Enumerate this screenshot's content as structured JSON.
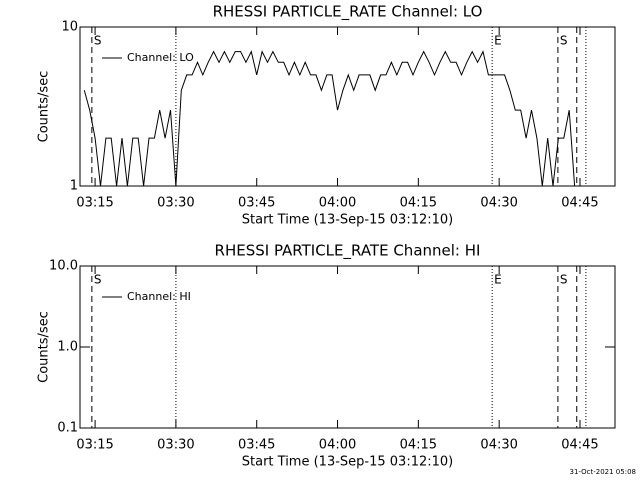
{
  "chart_data": [
    {
      "type": "line",
      "title": "RHESSI PARTICLE_RATE Channel: LO",
      "xlabel": "Start Time (13-Sep-15 03:12:10)",
      "ylabel": "Counts/sec",
      "log_y": true,
      "legend": "upper left",
      "xlim": [
        192.2,
        291.5
      ],
      "xticks": [
        {
          "value": 195,
          "label": "03:15"
        },
        {
          "value": 210,
          "label": "03:30"
        },
        {
          "value": 225,
          "label": "03:45"
        },
        {
          "value": 240,
          "label": "04:00"
        },
        {
          "value": 255,
          "label": "04:15"
        },
        {
          "value": 270,
          "label": "04:30"
        },
        {
          "value": 285,
          "label": "04:45"
        }
      ],
      "ylim": [
        1,
        10
      ],
      "yticks": [
        1,
        10
      ],
      "vlines": [
        {
          "x": 194.4,
          "style": "dashed",
          "label": "S"
        },
        {
          "x": 210,
          "style": "dotted"
        },
        {
          "x": 268.7,
          "style": "dotted",
          "label": "E"
        },
        {
          "x": 280.9,
          "style": "dashed",
          "label": "S"
        },
        {
          "x": 284.4,
          "style": "dashed"
        },
        {
          "x": 286.1,
          "style": "dotted"
        }
      ],
      "x": [
        193,
        194,
        195,
        196,
        197,
        198,
        199,
        200,
        201,
        202,
        203,
        204,
        205,
        206,
        207,
        208,
        209,
        210,
        211,
        212,
        213,
        214,
        215,
        216,
        217,
        218,
        219,
        220,
        221,
        222,
        223,
        224,
        225,
        226,
        227,
        228,
        229,
        230,
        231,
        232,
        233,
        234,
        235,
        236,
        237,
        238,
        239,
        240,
        241,
        242,
        243,
        244,
        245,
        246,
        247,
        248,
        249,
        250,
        251,
        252,
        253,
        254,
        255,
        256,
        257,
        258,
        259,
        260,
        261,
        262,
        263,
        264,
        265,
        266,
        267,
        268,
        269,
        270,
        271,
        272,
        273,
        274,
        275,
        276,
        277,
        278,
        279,
        280,
        281,
        282,
        283,
        284
      ],
      "series": [
        {
          "name": "Channel: LO",
          "color": "#000000",
          "values": [
            4,
            3,
            2,
            1,
            2,
            2,
            1,
            2,
            1,
            2,
            2,
            1,
            2,
            2,
            3,
            2,
            3,
            1,
            4,
            5,
            5,
            6,
            5,
            6,
            7,
            6,
            7,
            6,
            7,
            7,
            6,
            7,
            5,
            7,
            6,
            7,
            6,
            6,
            5,
            6,
            5,
            6,
            5,
            5,
            4,
            5,
            5,
            3,
            4,
            5,
            4,
            5,
            5,
            5,
            4,
            5,
            5,
            6,
            5,
            6,
            6,
            5,
            6,
            7,
            6,
            5,
            6,
            7,
            6,
            6,
            5,
            6,
            7,
            6,
            7,
            5,
            5,
            5,
            5,
            4,
            3,
            3,
            2,
            3,
            2,
            1,
            2,
            1,
            2,
            2,
            3,
            1
          ]
        }
      ]
    },
    {
      "type": "line",
      "title": "RHESSI PARTICLE_RATE Channel: HI",
      "xlabel": "Start Time (13-Sep-15 03:12:10)",
      "ylabel": "Counts/sec",
      "log_y": true,
      "legend": "upper left",
      "xlim": [
        192.2,
        291.5
      ],
      "xticks": [
        {
          "value": 195,
          "label": "03:15"
        },
        {
          "value": 210,
          "label": "03:30"
        },
        {
          "value": 225,
          "label": "03:45"
        },
        {
          "value": 240,
          "label": "04:00"
        },
        {
          "value": 255,
          "label": "04:15"
        },
        {
          "value": 270,
          "label": "04:30"
        },
        {
          "value": 285,
          "label": "04:45"
        }
      ],
      "ylim": [
        0.1,
        10
      ],
      "yticks": [
        0.1,
        {
          "value": 1,
          "label": "1.0"
        },
        {
          "value": 10,
          "label": "10.0"
        }
      ],
      "vlines": [
        {
          "x": 194.4,
          "style": "dashed",
          "label": "S"
        },
        {
          "x": 210,
          "style": "dotted"
        },
        {
          "x": 268.7,
          "style": "dotted",
          "label": "E"
        },
        {
          "x": 280.9,
          "style": "dashed",
          "label": "S"
        },
        {
          "x": 284.4,
          "style": "dashed"
        },
        {
          "x": 286.1,
          "style": "dotted"
        }
      ],
      "x": [],
      "series": [
        {
          "name": "Channel: HI",
          "color": "#000000",
          "values": []
        }
      ]
    }
  ],
  "footer": "31-Oct-2021 05:08"
}
